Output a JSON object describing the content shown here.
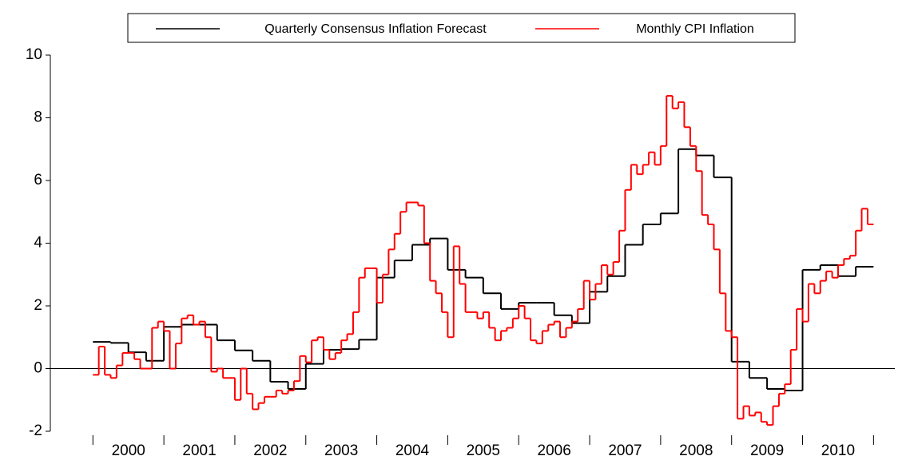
{
  "chart_data": {
    "type": "step",
    "xlim": [
      1999.4,
      2011.3
    ],
    "xticks": [
      {
        "value": 2000.5,
        "label": "2000"
      },
      {
        "value": 2001.5,
        "label": "2001"
      },
      {
        "value": 2002.5,
        "label": "2002"
      },
      {
        "value": 2003.5,
        "label": "2003"
      },
      {
        "value": 2004.5,
        "label": "2004"
      },
      {
        "value": 2005.5,
        "label": "2005"
      },
      {
        "value": 2006.5,
        "label": "2006"
      },
      {
        "value": 2007.5,
        "label": "2007"
      },
      {
        "value": 2008.5,
        "label": "2008"
      },
      {
        "value": 2009.5,
        "label": "2009"
      },
      {
        "value": 2010.5,
        "label": "2010"
      }
    ],
    "ylim": [
      -2,
      10
    ],
    "yticks": [
      -2,
      0,
      2,
      4,
      6,
      8,
      10
    ],
    "legend": "top",
    "series": [
      {
        "name": "Quarterly Consensus Inflation Forecast",
        "color": "#000000",
        "x": [
          2000,
          2000.25,
          2000.5,
          2000.75,
          2001,
          2001.25,
          2001.5,
          2001.75,
          2002,
          2002.25,
          2002.5,
          2002.75,
          2003,
          2003.25,
          2003.5,
          2003.75,
          2004,
          2004.25,
          2004.5,
          2004.75,
          2005,
          2005.25,
          2005.5,
          2005.75,
          2006,
          2006.25,
          2006.5,
          2006.75,
          2007,
          2007.25,
          2007.5,
          2007.75,
          2008,
          2008.25,
          2008.5,
          2008.75,
          2009,
          2009.25,
          2009.5,
          2009.75,
          2010,
          2010.25,
          2010.5,
          2010.75
        ],
        "values": [
          0.85,
          0.82,
          0.52,
          0.25,
          1.33,
          1.4,
          1.4,
          0.9,
          0.58,
          0.25,
          -0.42,
          -0.65,
          0.15,
          0.6,
          0.62,
          0.92,
          2.9,
          3.45,
          3.95,
          4.15,
          3.15,
          2.9,
          2.4,
          1.9,
          2.1,
          2.1,
          1.7,
          1.45,
          2.45,
          2.95,
          3.95,
          4.6,
          4.95,
          7.0,
          6.8,
          6.1,
          0.22,
          -0.3,
          -0.65,
          -0.7,
          3.15,
          3.3,
          2.95,
          3.25
        ]
      },
      {
        "name": "Monthly CPI Inflation",
        "color": "#ff0000",
        "x": [
          2000,
          2000.083,
          2000.167,
          2000.25,
          2000.333,
          2000.417,
          2000.5,
          2000.583,
          2000.667,
          2000.75,
          2000.833,
          2000.917,
          2001,
          2001.083,
          2001.167,
          2001.25,
          2001.333,
          2001.417,
          2001.5,
          2001.583,
          2001.667,
          2001.75,
          2001.833,
          2001.917,
          2002,
          2002.083,
          2002.167,
          2002.25,
          2002.333,
          2002.417,
          2002.5,
          2002.583,
          2002.667,
          2002.75,
          2002.833,
          2002.917,
          2003,
          2003.083,
          2003.167,
          2003.25,
          2003.333,
          2003.417,
          2003.5,
          2003.583,
          2003.667,
          2003.75,
          2003.833,
          2003.917,
          2004,
          2004.083,
          2004.167,
          2004.25,
          2004.333,
          2004.417,
          2004.5,
          2004.583,
          2004.667,
          2004.75,
          2004.833,
          2004.917,
          2005,
          2005.083,
          2005.167,
          2005.25,
          2005.333,
          2005.417,
          2005.5,
          2005.583,
          2005.667,
          2005.75,
          2005.833,
          2005.917,
          2006,
          2006.083,
          2006.167,
          2006.25,
          2006.333,
          2006.417,
          2006.5,
          2006.583,
          2006.667,
          2006.75,
          2006.833,
          2006.917,
          2007,
          2007.083,
          2007.167,
          2007.25,
          2007.333,
          2007.417,
          2007.5,
          2007.583,
          2007.667,
          2007.75,
          2007.833,
          2007.917,
          2008,
          2008.083,
          2008.167,
          2008.25,
          2008.333,
          2008.417,
          2008.5,
          2008.583,
          2008.667,
          2008.75,
          2008.833,
          2008.917,
          2009,
          2009.083,
          2009.167,
          2009.25,
          2009.333,
          2009.417,
          2009.5,
          2009.583,
          2009.667,
          2009.75,
          2009.833,
          2009.917,
          2010,
          2010.083,
          2010.167,
          2010.25,
          2010.333,
          2010.417,
          2010.5,
          2010.583,
          2010.667,
          2010.75,
          2010.833,
          2010.917
        ],
        "values": [
          -0.2,
          0.7,
          -0.2,
          -0.3,
          0.1,
          0.5,
          0.5,
          0.3,
          0.0,
          0.0,
          1.3,
          1.5,
          1.2,
          0.0,
          0.8,
          1.6,
          1.7,
          1.4,
          1.5,
          1.0,
          -0.1,
          0.0,
          -0.3,
          -0.3,
          -1.0,
          0.0,
          -0.8,
          -1.3,
          -1.1,
          -0.9,
          -0.9,
          -0.7,
          -0.8,
          -0.7,
          -0.4,
          0.4,
          0.2,
          0.9,
          1.0,
          0.6,
          0.3,
          0.5,
          0.9,
          1.1,
          1.8,
          2.9,
          3.2,
          3.2,
          2.1,
          3.0,
          3.8,
          4.3,
          5.0,
          5.3,
          5.3,
          5.2,
          4.0,
          2.8,
          2.4,
          1.8,
          1.0,
          3.9,
          2.7,
          1.8,
          1.8,
          1.6,
          1.8,
          1.3,
          0.9,
          1.2,
          1.3,
          1.6,
          2.0,
          1.6,
          0.9,
          0.8,
          1.2,
          1.4,
          1.5,
          1.0,
          1.3,
          1.5,
          1.9,
          2.8,
          2.2,
          2.7,
          3.3,
          3.0,
          3.4,
          4.4,
          5.7,
          6.5,
          6.2,
          6.5,
          6.9,
          6.5,
          7.1,
          8.7,
          8.3,
          8.5,
          7.7,
          7.1,
          6.3,
          4.9,
          4.6,
          3.8,
          2.4,
          1.2,
          1.0,
          -1.6,
          -1.2,
          -1.5,
          -1.4,
          -1.7,
          -1.8,
          -1.2,
          -0.8,
          -0.5,
          0.6,
          1.9,
          1.5,
          2.7,
          2.4,
          2.8,
          3.1,
          2.9,
          3.3,
          3.5,
          3.6,
          4.4,
          5.1,
          4.6
        ]
      }
    ]
  }
}
